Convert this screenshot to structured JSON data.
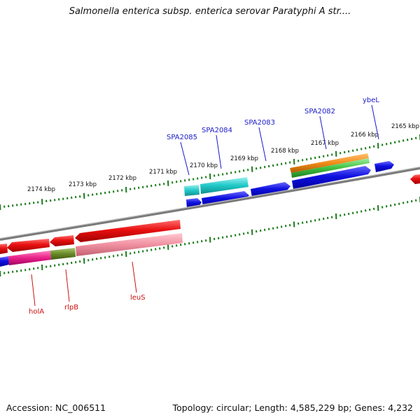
{
  "title": "Salmonella enterica subsp. enterica serovar Paratyphi A str....",
  "accession": "Accession: NC_006511",
  "summary": "Topology: circular; Length: 4,585,229 bp; Genes: 4,232",
  "ruler": {
    "labels": [
      "2174 kbp",
      "2173 kbp",
      "2172 kbp",
      "2171 kbp",
      "2170 kbp",
      "2169 kbp",
      "2168 kbp",
      "2167 kbp",
      "2166 kbp",
      "2165 kbp"
    ]
  },
  "genes": {
    "forward_labels": [
      "SPA2085",
      "SPA2084",
      "SPA2083",
      "SPA2082",
      "ybeL"
    ],
    "reverse_labels": [
      "holA",
      "rlpB",
      "leuS"
    ]
  },
  "colors": {
    "backbone": "#888888",
    "forward_cds": "#1010e0",
    "reverse_cds": "#e01010",
    "tick": "#1a7a1a",
    "cyan": "#20c8c8",
    "orange": "#f08c1a",
    "green": "#40c040",
    "pink": "#f090a0",
    "magenta": "#e8208a",
    "olive": "#6a8a2a",
    "fwd_label": "#1a1ac8",
    "rev_label": "#cc1111"
  }
}
